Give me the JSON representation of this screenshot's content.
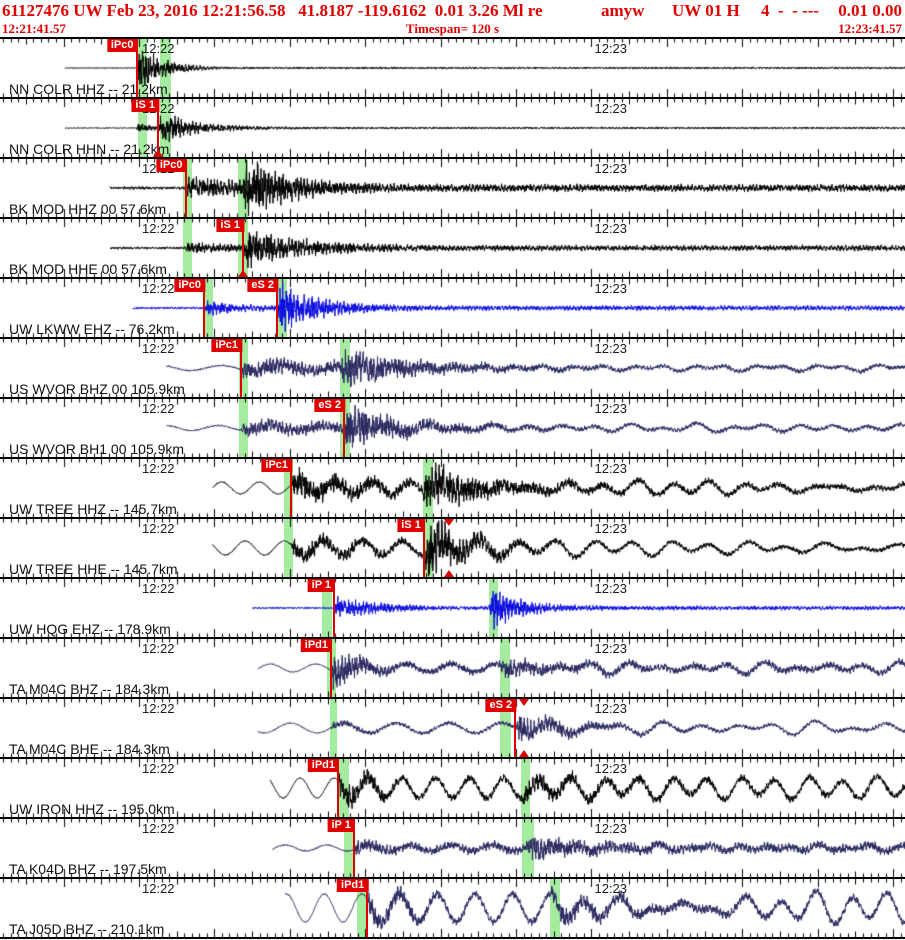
{
  "header": {
    "line1_main": "61127476 UW Feb 23, 2016 12:21:56.58   41.8187 -119.6162  0.01 3.26 Ml re",
    "analyst": "amyw",
    "network_code": "UW 01 H",
    "quality_flags": "4  -  - ---",
    "residuals": "0.01 0.00",
    "window_start_time": "12:21:41.57",
    "timespan_label": "Timespan= 120 s",
    "window_end_time": "12:23:41.57"
  },
  "colors": {
    "header_text": "#e00000",
    "pick_red": "#e00000",
    "band_green": "#a6eca0",
    "black": "#000000",
    "blue": "#0b0be0",
    "navy": "#28285f"
  },
  "timeline": {
    "duration_s": 120,
    "tick_phase_s": 0.43,
    "label_ticks": [
      {
        "t": 18.43,
        "label": "12:22"
      },
      {
        "t": 78.43,
        "label": "12:23"
      }
    ]
  },
  "traces": [
    {
      "station_label": "NN COLR HHZ -- 21.2km",
      "color": "black",
      "picks": [
        {
          "label": "iPc0",
          "t": 18.1
        }
      ],
      "bands": [
        [
          18.3,
          19.5
        ],
        [
          21.2,
          22.7
        ]
      ],
      "markers": [],
      "wave": {
        "start": 8.6,
        "n0": 0.4,
        "tp": 18.1,
        "Ap": 20,
        "taup": 3.5,
        "fh": 0.5,
        "ts": 0,
        "As": 0,
        "taus": 1,
        "pre": 0,
        "preT": 5,
        "Als": 0,
        "tauLf": 1,
        "lfT": 4,
        "flf": 0,
        "seed": 11
      }
    },
    {
      "station_label": "NN COLR HHN -- 21.2km",
      "color": "black",
      "picks": [
        {
          "label": "iS 1",
          "t": 20.95
        }
      ],
      "bands": [
        [
          18.3,
          19.5
        ],
        [
          21.2,
          22.7
        ]
      ],
      "markers": [
        {
          "t": 20.95,
          "pos": "up"
        }
      ],
      "wave": {
        "start": 8.6,
        "n0": 0.4,
        "tp": 18.1,
        "Ap": 5,
        "taup": 2,
        "fh": 0.5,
        "ts": 20.95,
        "As": 14,
        "taus": 4.5,
        "pre": 0,
        "preT": 5,
        "Als": 0,
        "tauLf": 1,
        "lfT": 4,
        "flf": 0,
        "seed": 22
      }
    },
    {
      "station_label": "BK MOD HHZ 00 57.6km",
      "color": "black",
      "picks": [
        {
          "label": "iPc0",
          "t": 24.6
        }
      ],
      "bands": [
        [
          24.3,
          25.5
        ],
        [
          31.6,
          32.9
        ]
      ],
      "markers": [],
      "wave": {
        "start": 14.6,
        "n0": 1.3,
        "tp": 24.6,
        "Ap": 9,
        "taup": 12,
        "fh": 1.8,
        "ts": 32.2,
        "As": 20,
        "taus": 6,
        "pre": 0,
        "preT": 5,
        "Als": 0,
        "tauLf": 1,
        "lfT": 4,
        "flf": 0,
        "seed": 33
      }
    },
    {
      "station_label": "BK MOD HHE 00 57.6km",
      "color": "black",
      "picks": [
        {
          "label": "iS 1",
          "t": 32.22
        }
      ],
      "bands": [
        [
          24.3,
          25.5
        ],
        [
          31.6,
          32.9
        ]
      ],
      "markers": [
        {
          "t": 32.22,
          "pos": "up"
        }
      ],
      "wave": {
        "start": 14.6,
        "n0": 1.0,
        "tp": 24.6,
        "Ap": 4,
        "taup": 10,
        "fh": 1.4,
        "ts": 32.2,
        "As": 16,
        "taus": 7,
        "pre": 0,
        "preT": 5,
        "Als": 0,
        "tauLf": 1,
        "lfT": 4,
        "flf": 0,
        "seed": 44
      }
    },
    {
      "station_label": "UW LKWW EHZ -- 76.2km",
      "color": "blue",
      "picks": [
        {
          "label": "iPc0",
          "t": 27.05
        },
        {
          "label": "eS 2",
          "t": 36.73
        }
      ],
      "bands": [
        [
          26.9,
          28.2
        ],
        [
          36.7,
          38.1
        ]
      ],
      "markers": [],
      "wave": {
        "start": 17.6,
        "n0": 1.0,
        "tp": 27.05,
        "Ap": 6,
        "taup": 6,
        "fh": 1.1,
        "ts": 36.73,
        "As": 24,
        "taus": 4.5,
        "pre": 0,
        "preT": 5,
        "Als": 0,
        "tauLf": 1,
        "lfT": 4,
        "flf": 0,
        "seed": 55
      }
    },
    {
      "station_label": "US WVOR BHZ 00 105.9km",
      "color": "navy",
      "picks": [
        {
          "label": "iPc1",
          "t": 31.96
        }
      ],
      "bands": [
        [
          31.7,
          32.9
        ],
        [
          45.1,
          46.4
        ]
      ],
      "markers": [],
      "wave": {
        "start": 22.1,
        "n0": 0.7,
        "tp": 31.96,
        "Ap": 7,
        "taup": 30,
        "fh": 1.2,
        "ts": 45.1,
        "As": 14,
        "taus": 6,
        "pre": 2.5,
        "preT": 8,
        "Als": 4,
        "tauLf": 20,
        "lfT": 4,
        "flf": 2.5,
        "seed": 66
      }
    },
    {
      "station_label": "US WVOR BH1 00 105.9km",
      "color": "navy",
      "picks": [
        {
          "label": "eS 2",
          "t": 45.62
        }
      ],
      "bands": [
        [
          31.7,
          32.9
        ],
        [
          45.1,
          46.4
        ]
      ],
      "markers": [],
      "wave": {
        "start": 22.1,
        "n0": 0.7,
        "tp": 31.96,
        "Ap": 6,
        "taup": 30,
        "fh": 1.2,
        "ts": 45.62,
        "As": 18,
        "taus": 5,
        "pre": 2.5,
        "preT": 7,
        "Als": 5,
        "tauLf": 18,
        "lfT": 4.5,
        "flf": 3.5,
        "seed": 77
      }
    },
    {
      "station_label": "UW TREE HHZ -- 145.7km",
      "color": "black",
      "picks": [
        {
          "label": "iPc1",
          "t": 38.59
        }
      ],
      "bands": [
        [
          37.7,
          38.9
        ],
        [
          56.1,
          57.4
        ]
      ],
      "markers": [],
      "wave": {
        "start": 28.2,
        "n0": 0.5,
        "tp": 38.6,
        "Ap": 12,
        "taup": 14,
        "fh": 2.0,
        "ts": 56.1,
        "As": 17,
        "taus": 8,
        "pre": 6,
        "preT": 5,
        "Als": 6,
        "tauLf": 30,
        "lfT": 4.5,
        "flf": 5,
        "seed": 88
      }
    },
    {
      "station_label": "UW TREE HHE -- 145.7km",
      "color": "black",
      "picks": [
        {
          "label": "iS 1",
          "t": 56.2
        }
      ],
      "bands": [
        [
          37.7,
          38.9
        ],
        [
          56.1,
          57.4
        ]
      ],
      "markers": [
        {
          "t": 59.6,
          "pos": "both"
        }
      ],
      "wave": {
        "start": 28.2,
        "n0": 0.5,
        "tp": 38.6,
        "Ap": 8,
        "taup": 14,
        "fh": 1.5,
        "ts": 56.2,
        "As": 26,
        "taus": 5,
        "pre": 7,
        "preT": 5.2,
        "Als": 7,
        "tauLf": 30,
        "lfT": 5,
        "flf": 6,
        "seed": 99
      }
    },
    {
      "station_label": "UW HQG EHZ -- 178.9km",
      "color": "blue",
      "picks": [
        {
          "label": "iP 1",
          "t": 44.29
        }
      ],
      "bands": [
        [
          42.7,
          44.0
        ],
        [
          64.8,
          66.0
        ]
      ],
      "markers": [],
      "wave": {
        "start": 33.5,
        "n0": 0.8,
        "tp": 44.3,
        "Ap": 9,
        "taup": 7,
        "fh": 1.0,
        "ts": 64.9,
        "As": 20,
        "taus": 3.5,
        "pre": 0,
        "preT": 5,
        "Als": 0,
        "tauLf": 1,
        "lfT": 4,
        "flf": 0,
        "seed": 110
      }
    },
    {
      "station_label": "TA M04C BHZ -- 184.3km",
      "color": "navy",
      "picks": [
        {
          "label": "iPd1",
          "t": 43.89
        }
      ],
      "bands": [
        [
          43.4,
          44.6
        ],
        [
          66.3,
          67.6
        ]
      ],
      "markers": [],
      "wave": {
        "start": 34.2,
        "n0": 0.5,
        "tp": 43.9,
        "Ap": 18,
        "taup": 5,
        "fh": 2.5,
        "ts": 66.4,
        "As": 6,
        "taus": 6,
        "pre": 4,
        "preT": 6,
        "Als": 5,
        "tauLf": 28,
        "lfT": 4.5,
        "flf": 4.5,
        "seed": 121
      }
    },
    {
      "station_label": "TA M04C BHE -- 184.3km",
      "color": "navy",
      "picks": [
        {
          "label": "eS 2",
          "t": 68.3
        }
      ],
      "bands": [
        [
          43.7,
          44.7
        ],
        [
          66.3,
          67.8
        ]
      ],
      "markers": [
        {
          "t": 69.5,
          "pos": "both"
        }
      ],
      "wave": {
        "start": 34.2,
        "n0": 0.5,
        "tp": 43.9,
        "Ap": 3,
        "taup": 8,
        "fh": 1.2,
        "ts": 68.3,
        "As": 11,
        "taus": 6,
        "pre": 5,
        "preT": 7,
        "Als": 6,
        "tauLf": 30,
        "lfT": 5,
        "flf": 5,
        "seed": 132
      }
    },
    {
      "station_label": "UW IRON HHZ -- 195.0km",
      "color": "black",
      "picks": [
        {
          "label": "iPd1",
          "t": 44.82
        }
      ],
      "bands": [
        [
          44.9,
          46.3
        ],
        [
          69.1,
          70.3
        ]
      ],
      "markers": [],
      "wave": {
        "start": 35.8,
        "n0": 0.5,
        "tp": 44.8,
        "Ap": 13,
        "taup": 6,
        "fh": 2.5,
        "ts": 69.2,
        "As": 6,
        "taus": 8,
        "pre": 10,
        "preT": 4.5,
        "Als": 8,
        "tauLf": 40,
        "lfT": 4.5,
        "flf": 7,
        "seed": 143
      }
    },
    {
      "station_label": "TA K04D BHZ -- 197.5km",
      "color": "navy",
      "picks": [
        {
          "label": "iP 1",
          "t": 46.92
        }
      ],
      "bands": [
        [
          45.6,
          47.0
        ],
        [
          69.2,
          70.8
        ]
      ],
      "markers": [],
      "wave": {
        "start": 36.1,
        "n0": 0.6,
        "tp": 46.9,
        "Ap": 6,
        "taup": 12,
        "fh": 3.0,
        "ts": 69.8,
        "As": 7,
        "taus": 8,
        "pre": 3,
        "preT": 5.5,
        "Als": 3,
        "tauLf": 30,
        "lfT": 3.5,
        "flf": 2.5,
        "seed": 154
      }
    },
    {
      "station_label": "TA J05D BHZ -- 210.1km",
      "color": "navy",
      "picks": [
        {
          "label": "iPd1",
          "t": 48.7
        }
      ],
      "bands": [
        [
          47.3,
          48.7
        ],
        [
          72.9,
          74.2
        ]
      ],
      "markers": [],
      "wave": {
        "start": 37.8,
        "n0": 0.5,
        "tp": 48.7,
        "Ap": 10,
        "taup": 8,
        "fh": 2.5,
        "ts": 73.0,
        "As": 6,
        "taus": 10,
        "pre": 14,
        "preT": 5,
        "Als": 10,
        "tauLf": 40,
        "lfT": 4.5,
        "flf": 11,
        "seed": 165
      }
    }
  ]
}
